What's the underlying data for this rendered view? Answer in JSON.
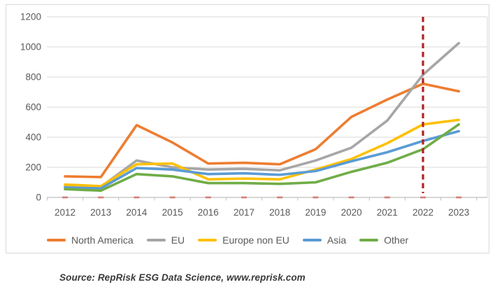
{
  "figure": {
    "background": "#FFFFFF",
    "border_color": "#D9D9D9",
    "gridline_color": "#DADADA",
    "axis_color": "#BFBFBF",
    "tick_label_color": "#595959"
  },
  "chart_data": {
    "type": "line",
    "title": "",
    "xlabel": "",
    "ylabel": "",
    "x_categories": [
      "2012",
      "2013",
      "2014",
      "2015",
      "2016",
      "2017",
      "2018",
      "2019",
      "2020",
      "2021",
      "2022",
      "2023"
    ],
    "ylim": [
      0,
      1200
    ],
    "y_ticks": [
      0,
      200,
      400,
      600,
      800,
      1000,
      1200
    ],
    "grid": true,
    "legend_position": "bottom",
    "series": [
      {
        "name": "North America",
        "color": "#ED7D31",
        "values": [
          140,
          135,
          480,
          365,
          225,
          230,
          220,
          320,
          535,
          650,
          755,
          705
        ]
      },
      {
        "name": "EU",
        "color": "#A6A6A6",
        "values": [
          75,
          70,
          245,
          200,
          185,
          190,
          180,
          245,
          330,
          510,
          815,
          1025
        ]
      },
      {
        "name": "Europe non EU",
        "color": "#FFC000",
        "values": [
          85,
          75,
          220,
          225,
          120,
          125,
          120,
          185,
          255,
          360,
          485,
          515
        ]
      },
      {
        "name": "Asia",
        "color": "#5B9BD5",
        "values": [
          65,
          60,
          195,
          185,
          155,
          160,
          150,
          175,
          240,
          300,
          375,
          440
        ]
      },
      {
        "name": "Other",
        "color": "#70AD47",
        "values": [
          55,
          45,
          155,
          140,
          95,
          95,
          90,
          100,
          170,
          230,
          320,
          485
        ]
      }
    ],
    "annotations": {
      "vline": {
        "x": "2022",
        "color": "#B22222",
        "style": "dashed"
      },
      "zero_markers": {
        "y": 0,
        "color": "#D57C76",
        "style": "dash-per-category"
      }
    }
  },
  "source": {
    "text": "Source: RepRisk ESG Data Science, www.reprisk.com"
  }
}
